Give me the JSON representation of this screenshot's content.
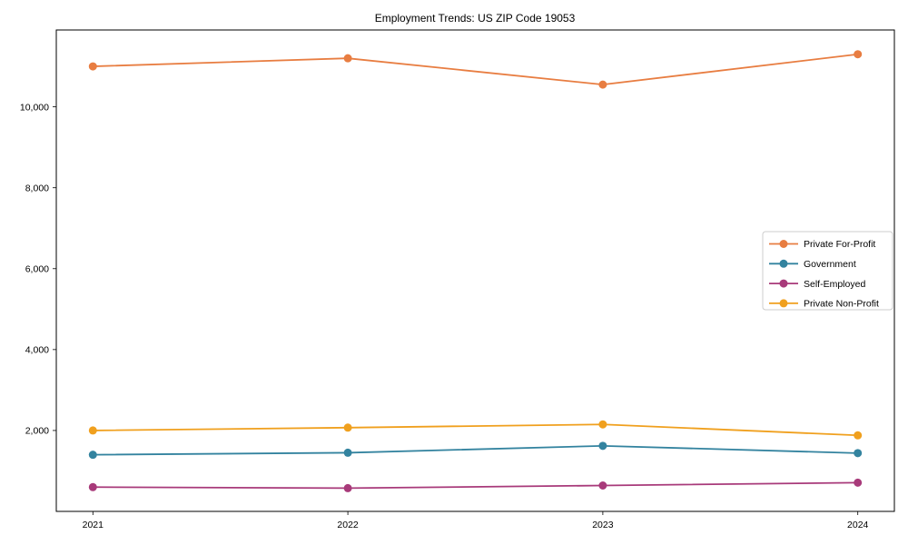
{
  "chart_data": {
    "type": "line",
    "title": "Employment Trends: US ZIP Code 19053",
    "xlabel": "",
    "ylabel": "",
    "categories": [
      "2021",
      "2022",
      "2023",
      "2024"
    ],
    "series": [
      {
        "name": "Private For-Profit",
        "color": "#e87d41",
        "values": [
          11000,
          11200,
          10550,
          11300
        ]
      },
      {
        "name": "Government",
        "color": "#33839f",
        "values": [
          1400,
          1450,
          1620,
          1440
        ]
      },
      {
        "name": "Self-Employed",
        "color": "#a83a7a",
        "values": [
          600,
          575,
          640,
          710
        ]
      },
      {
        "name": "Private Non-Profit",
        "color": "#f0a01e",
        "values": [
          2000,
          2070,
          2150,
          1880
        ]
      }
    ],
    "ylim": [
      0,
      11900
    ],
    "yticks": [
      {
        "value": 2000,
        "label": "2,000"
      },
      {
        "value": 4000,
        "label": "4,000"
      },
      {
        "value": 6000,
        "label": "6,000"
      },
      {
        "value": 8000,
        "label": "8,000"
      },
      {
        "value": 10000,
        "label": "10,000"
      }
    ],
    "grid": false,
    "legend_position": "center right",
    "marker": "circle",
    "axis_color": "#000000",
    "background_color": "#ffffff",
    "legend_border_color": "#cccccc"
  }
}
